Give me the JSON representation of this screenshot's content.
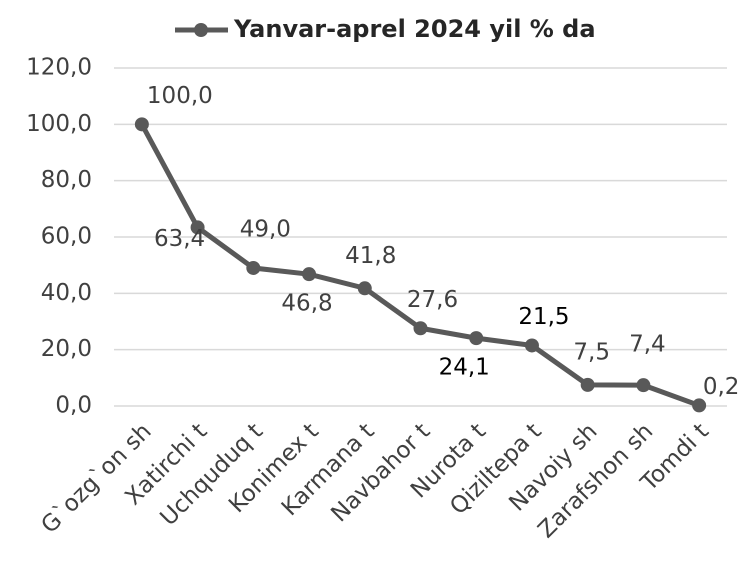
{
  "chart_data": {
    "type": "line",
    "categories": [
      "G`ozg`on sh",
      "Xatirchi t",
      "Uchquduq t",
      "Konimex t",
      "Karmana t",
      "Navbahor t",
      "Nurota t",
      "Qiziltepa t",
      "Navoiy sh",
      "Zarafshon sh",
      "Tomdi t"
    ],
    "series": [
      {
        "name": "Yanvar-aprel 2024 yil % da",
        "color": "#595959",
        "values": [
          100.0,
          63.4,
          49.0,
          46.8,
          41.8,
          27.6,
          24.1,
          21.5,
          7.5,
          7.4,
          0.2
        ],
        "value_labels": [
          "100,0",
          "63,4",
          "49,0",
          "46,8",
          "41,8",
          "27,6",
          "24,1",
          "21,5",
          "7,5",
          "7,4",
          "0,2"
        ]
      }
    ],
    "ylim": [
      0,
      120
    ],
    "yticks": [
      {
        "value": 0,
        "label": "0,0"
      },
      {
        "value": 20,
        "label": "20,0"
      },
      {
        "value": 40,
        "label": "40,0"
      },
      {
        "value": 60,
        "label": "60,0"
      },
      {
        "value": 80,
        "label": "80,0"
      },
      {
        "value": 100,
        "label": "100,0"
      },
      {
        "value": 120,
        "label": "120,0"
      }
    ],
    "grid": true,
    "legend": "top"
  }
}
